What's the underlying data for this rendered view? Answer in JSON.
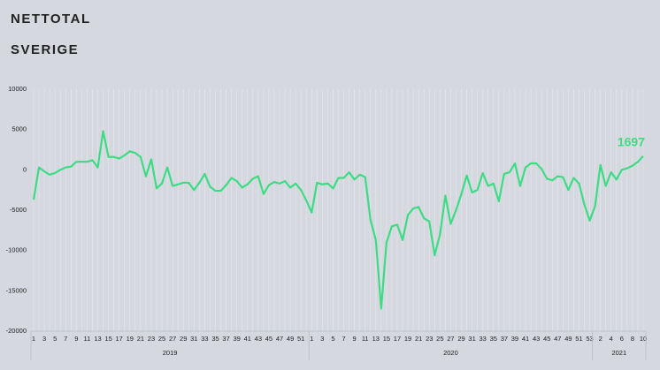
{
  "chart_data": {
    "type": "line",
    "title": "NETTOTAL",
    "subtitle": "SVERIGE",
    "category_groups": [
      {
        "name": "2019",
        "categories": [
          "1",
          null,
          "3",
          null,
          "5",
          null,
          "7",
          null,
          "9",
          null,
          "11",
          null,
          "13",
          null,
          "15",
          null,
          "17",
          null,
          "19",
          null,
          "21",
          null,
          "23",
          null,
          "25",
          null,
          "27",
          null,
          "29",
          null,
          "31",
          null,
          "33",
          null,
          "35",
          null,
          "37",
          null,
          "39",
          null,
          "41",
          null,
          "43",
          null,
          "45",
          null,
          "47",
          null,
          "49",
          null,
          "51",
          null
        ]
      },
      {
        "name": "2020",
        "categories": [
          "1",
          null,
          "3",
          null,
          "5",
          null,
          "7",
          null,
          "9",
          null,
          "11",
          null,
          "13",
          null,
          "15",
          null,
          "17",
          null,
          "19",
          null,
          "21",
          null,
          "23",
          null,
          "25",
          null,
          "27",
          null,
          "29",
          null,
          "31",
          null,
          "33",
          null,
          "35",
          null,
          "37",
          null,
          "39",
          null,
          "41",
          null,
          "43",
          null,
          "45",
          null,
          "47",
          null,
          "49",
          null,
          "51",
          null,
          "53"
        ]
      },
      {
        "name": "2021",
        "categories": [
          null,
          "2",
          null,
          "4",
          null,
          "6",
          null,
          "8",
          null,
          "10"
        ]
      }
    ],
    "series": [
      {
        "name": "Nettotal",
        "color": "#3ddc84",
        "values": [
          -3700,
          300,
          -200,
          -600,
          -400,
          0,
          300,
          400,
          1000,
          1000,
          1000,
          1200,
          300,
          4800,
          1600,
          1600,
          1400,
          1800,
          2300,
          2100,
          1600,
          -800,
          1300,
          -2300,
          -1700,
          300,
          -2000,
          -1800,
          -1600,
          -1600,
          -2500,
          -1600,
          -500,
          -2100,
          -2600,
          -2600,
          -1900,
          -1000,
          -1400,
          -2200,
          -1800,
          -1100,
          -800,
          -3000,
          -1900,
          -1500,
          -1700,
          -1400,
          -2200,
          -1700,
          -2500,
          -3800,
          -5300,
          -1600,
          -1800,
          -1700,
          -2300,
          -1000,
          -1000,
          -300,
          -1200,
          -600,
          -900,
          -6200,
          -8700,
          -17200,
          -9000,
          -7000,
          -6800,
          -8700,
          -5600,
          -4800,
          -4600,
          -6000,
          -6400,
          -10600,
          -8000,
          -3200,
          -6700,
          -5000,
          -3000,
          -700,
          -2800,
          -2500,
          -400,
          -2000,
          -1700,
          -3900,
          -500,
          -300,
          800,
          -2000,
          300,
          800,
          800,
          100,
          -1100,
          -1300,
          -800,
          -900,
          -2500,
          -1000,
          -1700,
          -4300,
          -6300,
          -4500,
          600,
          -2000,
          -300,
          -1200,
          0,
          200,
          500,
          1000,
          1697
        ]
      }
    ],
    "ylim": [
      -20000,
      10000
    ],
    "yticks": [
      10000,
      5000,
      0,
      -5000,
      -10000,
      -15000,
      -20000
    ],
    "grid": "x"
  }
}
